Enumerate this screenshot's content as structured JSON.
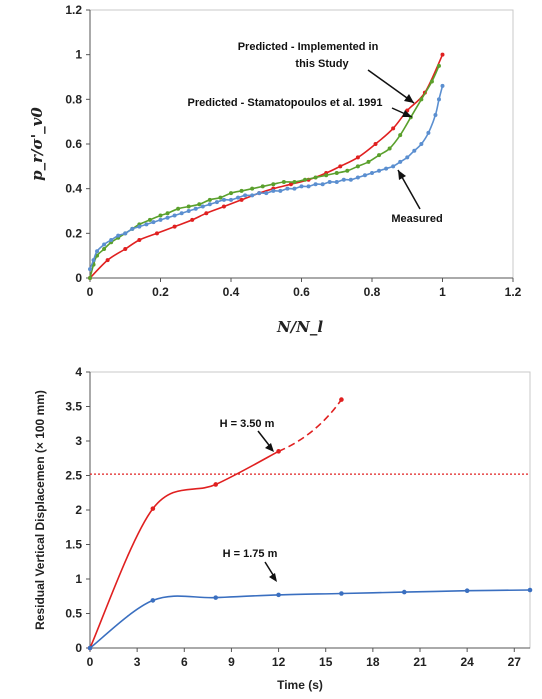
{
  "chart_data": [
    {
      "type": "line",
      "title": "",
      "ylabel": "p_r/σ'_v0",
      "xlabel": "N/N_l",
      "xlim": [
        0,
        1.2
      ],
      "ylim": [
        0,
        1.2
      ],
      "xticks": [
        "0",
        "0.2",
        "0.4",
        "0.6",
        "0.8",
        "1",
        "1.2"
      ],
      "yticks": [
        "0",
        "0.2",
        "0.4",
        "0.6",
        "0.8",
        "1",
        "1.2"
      ],
      "grid": false,
      "annotations": [
        "Predicted - Implemented in",
        "this Study",
        "Predicted - Stamatopoulos et al. 1991",
        "Measured"
      ],
      "series": [
        {
          "name": "Predicted - Implemented in this Study",
          "color": "#e02020",
          "x": [
            0,
            0.05,
            0.1,
            0.14,
            0.19,
            0.24,
            0.29,
            0.33,
            0.38,
            0.43,
            0.48,
            0.52,
            0.57,
            0.62,
            0.67,
            0.71,
            0.76,
            0.81,
            0.86,
            0.9,
            0.95,
            1.0
          ],
          "y": [
            0,
            0.08,
            0.13,
            0.17,
            0.2,
            0.23,
            0.26,
            0.29,
            0.32,
            0.35,
            0.38,
            0.4,
            0.42,
            0.44,
            0.47,
            0.5,
            0.54,
            0.6,
            0.67,
            0.75,
            0.83,
            1.0
          ]
        },
        {
          "name": "Predicted - Stamatopoulos et al. 1991",
          "color": "#5aa02c",
          "x": [
            0,
            0.01,
            0.02,
            0.04,
            0.06,
            0.08,
            0.1,
            0.12,
            0.14,
            0.17,
            0.2,
            0.22,
            0.25,
            0.28,
            0.31,
            0.34,
            0.37,
            0.4,
            0.43,
            0.46,
            0.49,
            0.52,
            0.55,
            0.58,
            0.61,
            0.64,
            0.67,
            0.7,
            0.73,
            0.76,
            0.79,
            0.82,
            0.85,
            0.88,
            0.91,
            0.94,
            0.97,
            0.99
          ],
          "y": [
            0,
            0.06,
            0.1,
            0.13,
            0.16,
            0.18,
            0.2,
            0.22,
            0.24,
            0.26,
            0.28,
            0.29,
            0.31,
            0.32,
            0.33,
            0.35,
            0.36,
            0.38,
            0.39,
            0.4,
            0.41,
            0.42,
            0.43,
            0.43,
            0.44,
            0.45,
            0.46,
            0.47,
            0.48,
            0.5,
            0.52,
            0.55,
            0.58,
            0.64,
            0.72,
            0.8,
            0.88,
            0.95
          ]
        },
        {
          "name": "Measured",
          "color": "#5b8fd0",
          "x": [
            0,
            0.01,
            0.02,
            0.04,
            0.06,
            0.08,
            0.1,
            0.12,
            0.14,
            0.16,
            0.18,
            0.2,
            0.22,
            0.24,
            0.26,
            0.28,
            0.3,
            0.32,
            0.34,
            0.36,
            0.38,
            0.4,
            0.42,
            0.44,
            0.46,
            0.48,
            0.5,
            0.52,
            0.54,
            0.56,
            0.58,
            0.6,
            0.62,
            0.64,
            0.66,
            0.68,
            0.7,
            0.72,
            0.74,
            0.76,
            0.78,
            0.8,
            0.82,
            0.84,
            0.86,
            0.88,
            0.9,
            0.92,
            0.94,
            0.96,
            0.98,
            0.99,
            1.0
          ],
          "y": [
            0.04,
            0.08,
            0.12,
            0.15,
            0.17,
            0.19,
            0.2,
            0.22,
            0.23,
            0.24,
            0.25,
            0.26,
            0.27,
            0.28,
            0.29,
            0.3,
            0.31,
            0.32,
            0.33,
            0.34,
            0.35,
            0.35,
            0.36,
            0.37,
            0.37,
            0.38,
            0.38,
            0.39,
            0.39,
            0.4,
            0.4,
            0.41,
            0.41,
            0.42,
            0.42,
            0.43,
            0.43,
            0.44,
            0.44,
            0.45,
            0.46,
            0.47,
            0.48,
            0.49,
            0.5,
            0.52,
            0.54,
            0.57,
            0.6,
            0.65,
            0.73,
            0.8,
            0.86
          ]
        }
      ]
    },
    {
      "type": "line",
      "title": "",
      "ylabel": "Residual Vertical Displacemen (× 100 mm)",
      "xlabel": "Time (s)",
      "xlim": [
        0,
        28
      ],
      "ylim": [
        0,
        4
      ],
      "xticks": [
        "0",
        "3",
        "6",
        "9",
        "12",
        "15",
        "18",
        "21",
        "24",
        "27"
      ],
      "yticks": [
        "0",
        "0.5",
        "1",
        "1.5",
        "2",
        "2.5",
        "3",
        "3.5",
        "4"
      ],
      "grid": false,
      "annotations": [
        "H = 3.50 m",
        "H = 1.75 m"
      ],
      "reference_line": {
        "y": 2.52,
        "color": "#e02020",
        "style": "dotted"
      },
      "series": [
        {
          "name": "H = 3.50 m",
          "color": "#e02020",
          "x": [
            0,
            4,
            8,
            12
          ],
          "y": [
            0,
            2.02,
            2.37,
            2.85
          ],
          "extension": {
            "style": "dashed",
            "x": [
              12,
              16
            ],
            "y": [
              2.85,
              3.6
            ]
          }
        },
        {
          "name": "H = 1.75 m",
          "color": "#3a6fc0",
          "x": [
            0,
            4,
            8,
            12,
            16,
            20,
            24,
            28
          ],
          "y": [
            0,
            0.69,
            0.73,
            0.77,
            0.79,
            0.81,
            0.83,
            0.84
          ]
        }
      ]
    }
  ]
}
